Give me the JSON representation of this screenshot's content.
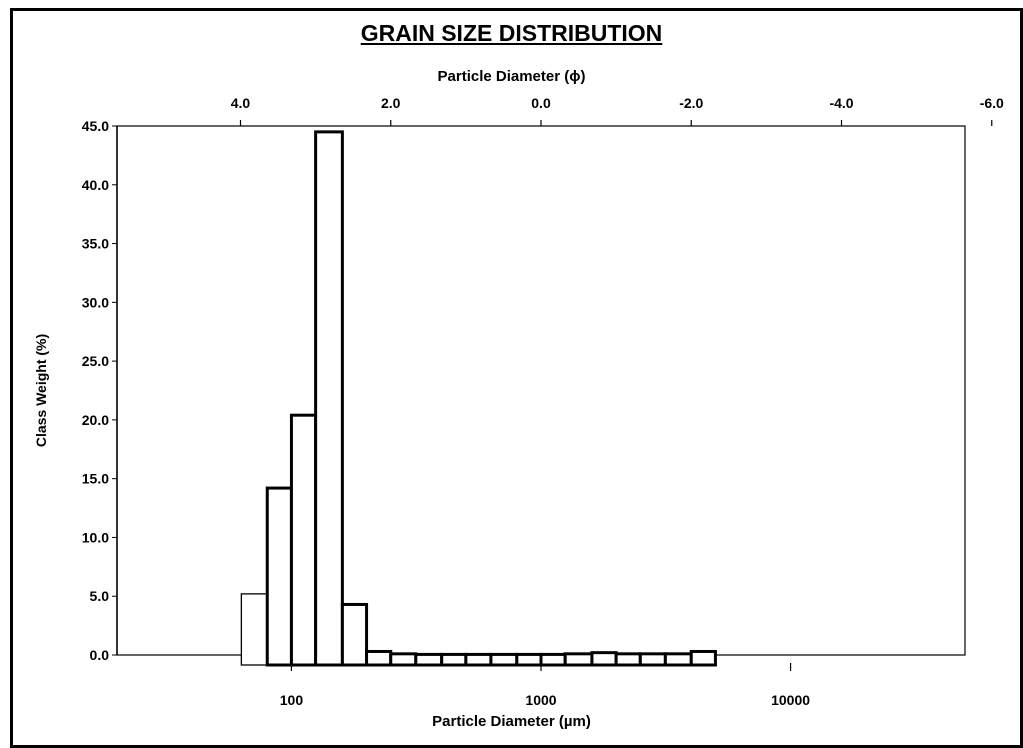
{
  "chart_data": {
    "type": "bar",
    "title": "GRAIN SIZE DISTRIBUTION",
    "xlabel": "Particle Diameter (µm)",
    "x2label": "Particle Diameter (ϕ)",
    "ylabel": "Class Weight (%)",
    "x_scale": "log",
    "xlim": [
      20,
      50000
    ],
    "ylim": [
      0,
      45
    ],
    "y_ticks": [
      "0.0",
      "5.0",
      "10.0",
      "15.0",
      "20.0",
      "25.0",
      "30.0",
      "35.0",
      "40.0",
      "45.0"
    ],
    "x_ticks": [
      {
        "value": 100,
        "label": "100"
      },
      {
        "value": 1000,
        "label": "1000"
      },
      {
        "value": 10000,
        "label": "10000"
      }
    ],
    "x2_ticks": [
      {
        "value": 4.0,
        "label": "4.0"
      },
      {
        "value": 2.0,
        "label": "2.0"
      },
      {
        "value": 0.0,
        "label": "0.0"
      },
      {
        "value": -2.0,
        "label": "-2.0"
      },
      {
        "value": -4.0,
        "label": "-4.0"
      },
      {
        "value": -6.0,
        "label": "-6.0"
      }
    ],
    "bins_um": [
      {
        "from": 63,
        "to": 80,
        "value": 5.2
      },
      {
        "from": 80,
        "to": 100,
        "value": 14.2
      },
      {
        "from": 100,
        "to": 125,
        "value": 20.4
      },
      {
        "from": 125,
        "to": 160,
        "value": 44.5
      },
      {
        "from": 160,
        "to": 200,
        "value": 4.3
      },
      {
        "from": 200,
        "to": 250,
        "value": 0.3
      },
      {
        "from": 250,
        "to": 315,
        "value": 0.1
      },
      {
        "from": 315,
        "to": 400,
        "value": 0.05
      },
      {
        "from": 400,
        "to": 500,
        "value": 0.05
      },
      {
        "from": 500,
        "to": 630,
        "value": 0.05
      },
      {
        "from": 630,
        "to": 800,
        "value": 0.05
      },
      {
        "from": 800,
        "to": 1000,
        "value": 0.05
      },
      {
        "from": 1000,
        "to": 1250,
        "value": 0.05
      },
      {
        "from": 1250,
        "to": 1600,
        "value": 0.1
      },
      {
        "from": 1600,
        "to": 2000,
        "value": 0.2
      },
      {
        "from": 2000,
        "to": 2500,
        "value": 0.1
      },
      {
        "from": 2500,
        "to": 3150,
        "value": 0.1
      },
      {
        "from": 3150,
        "to": 4000,
        "value": 0.1
      },
      {
        "from": 4000,
        "to": 5000,
        "value": 0.3
      }
    ],
    "grid": false,
    "legend": "none"
  }
}
